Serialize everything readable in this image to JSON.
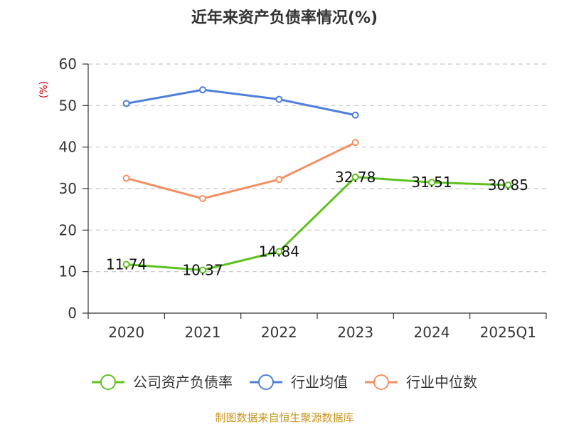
{
  "chart_data": {
    "type": "line",
    "title": "近年来资产负债率情况(%)",
    "ylabel": "(%)",
    "categories": [
      "2020",
      "2021",
      "2022",
      "2023",
      "2024",
      "2025Q1"
    ],
    "ylim": [
      0,
      60
    ],
    "yticks": [
      0,
      10,
      20,
      30,
      40,
      50,
      60
    ],
    "grid": true,
    "legend_position": "bottom",
    "series": [
      {
        "name": "公司资产负债率",
        "color": "#5ec21f",
        "values": [
          11.74,
          10.37,
          14.84,
          32.78,
          31.51,
          30.85
        ],
        "labels": [
          "11.74",
          "10.37",
          "14.84",
          "32.78",
          "31.51",
          "30.85"
        ]
      },
      {
        "name": "行业均值",
        "color": "#4e7fd9",
        "values": [
          50.5,
          53.8,
          51.5,
          47.7,
          null,
          null
        ]
      },
      {
        "name": "行业中位数",
        "color": "#f39062",
        "values": [
          32.5,
          27.6,
          32.2,
          41.1,
          null,
          null
        ]
      }
    ]
  },
  "footer": {
    "source": "制图数据来自恒生聚源数据库"
  }
}
